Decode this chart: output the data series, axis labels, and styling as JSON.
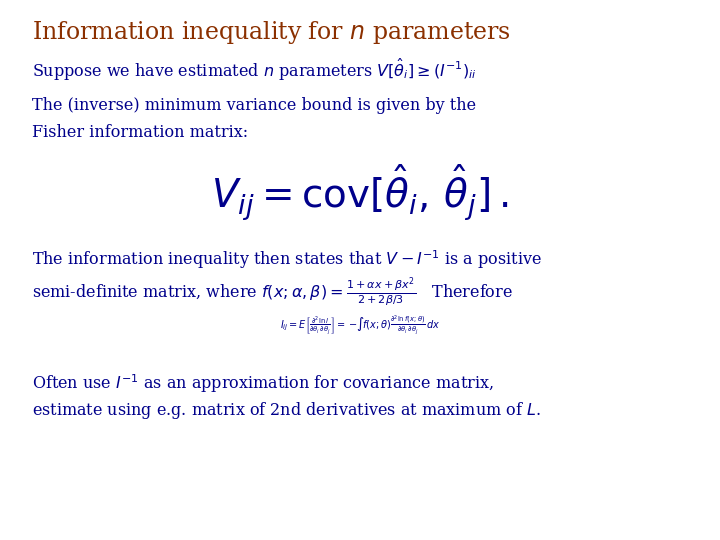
{
  "bg_color": "#ffffff",
  "title": "Information inequality for $n$ parameters",
  "title_color": "#8B3000",
  "title_fontsize": 17,
  "body_color": "#00008B",
  "body_fontsize": 11.5,
  "formula_fontsize": 28,
  "small_fontsize": 7,
  "line1": "Suppose we have estimated $n$ parameters $V[\\hat{\\theta}_i] \\geq (I^{-1})_{ii}$",
  "line2a": "The (inverse) minimum variance bound is given by the",
  "line2b": "Fisher information matrix:",
  "formula": "$V_{ij} = \\mathrm{cov}[\\hat{\\theta}_i,\\, \\hat{\\theta}_j]\\,.$",
  "line3a": "The information inequality then states that $V - I^{-1}$ is a positive",
  "line3b_text": "semi-definite matrix, where",
  "line3b_formula": "$f(x;\\alpha,\\beta) = \\frac{1 + \\alpha x + \\beta x^{2}}{2 + 2\\beta/3}$",
  "line3b_end": "   Therefore",
  "small_formula": "$I_{ij} = E\\left[\\frac{\\partial^2 \\ln l}{\\partial\\theta_i\\,\\partial\\theta_j}\\right] = -\\!\\int\\! f(x;\\theta)\\frac{\\partial^2 \\ln f(x;\\theta)}{\\partial\\theta_i\\,\\partial\\theta_j}\\,dx$",
  "line4a": "Often use $I^{-1}$ as an approximation for covariance matrix,",
  "line4b": "estimate using e.g. matrix of 2nd derivatives at maximum of $L$."
}
